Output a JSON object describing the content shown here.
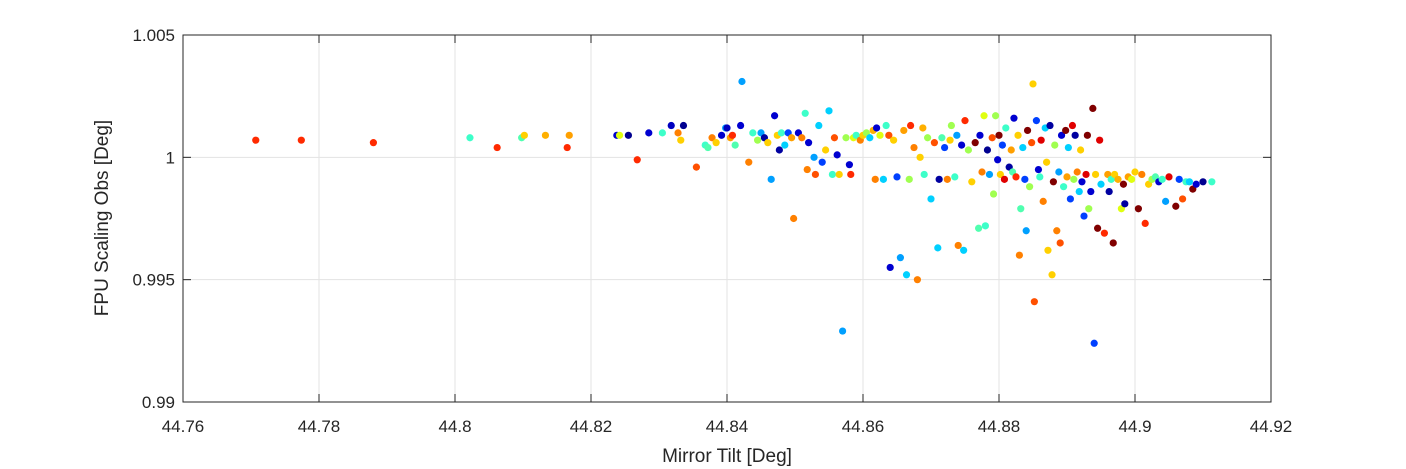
{
  "chart_data": {
    "type": "scatter",
    "title": "",
    "xlabel": "Mirror Tilt [Deg]",
    "ylabel": "FPU Scaling Obs [Deg]",
    "xlim": [
      44.76,
      44.92
    ],
    "ylim": [
      0.99,
      1.005
    ],
    "xticks": [
      44.76,
      44.78,
      44.8,
      44.82,
      44.84,
      44.86,
      44.88,
      44.9,
      44.92
    ],
    "yticks": [
      0.99,
      0.995,
      1,
      1.005
    ],
    "xtick_labels": [
      "44.76",
      "44.78",
      "44.8",
      "44.82",
      "44.84",
      "44.86",
      "44.88",
      "44.9",
      "44.92"
    ],
    "ytick_labels": [
      "0.99",
      "0.995",
      "1",
      "1.005"
    ],
    "grid": true,
    "colormap": "jet",
    "points": [
      {
        "x": 44.7707,
        "y": 1.0007,
        "color": "#ff2a00"
      },
      {
        "x": 44.7774,
        "y": 1.0007,
        "color": "#ff2a00"
      },
      {
        "x": 44.788,
        "y": 1.0006,
        "color": "#ff2a00"
      },
      {
        "x": 44.8022,
        "y": 1.0008,
        "color": "#3dffc9"
      },
      {
        "x": 44.8062,
        "y": 1.0004,
        "color": "#ff2a00"
      },
      {
        "x": 44.8098,
        "y": 1.0008,
        "color": "#50ffb0"
      },
      {
        "x": 44.8102,
        "y": 1.0009,
        "color": "#ffd000"
      },
      {
        "x": 44.8133,
        "y": 1.0009,
        "color": "#ffb000"
      },
      {
        "x": 44.8165,
        "y": 1.0004,
        "color": "#ff2a00"
      },
      {
        "x": 44.8168,
        "y": 1.0009,
        "color": "#ffa000"
      },
      {
        "x": 44.8238,
        "y": 1.0009,
        "color": "#0000cc"
      },
      {
        "x": 44.8242,
        "y": 1.0009,
        "color": "#e0ff10"
      },
      {
        "x": 44.8255,
        "y": 1.0009,
        "color": "#000090"
      },
      {
        "x": 44.8268,
        "y": 0.9999,
        "color": "#ff2a00"
      },
      {
        "x": 44.8285,
        "y": 1.001,
        "color": "#0000d0"
      },
      {
        "x": 44.8305,
        "y": 1.001,
        "color": "#3dffc9"
      },
      {
        "x": 44.8318,
        "y": 1.0013,
        "color": "#0000c0"
      },
      {
        "x": 44.8328,
        "y": 1.001,
        "color": "#ff8000"
      },
      {
        "x": 44.8332,
        "y": 1.0007,
        "color": "#ffd000"
      },
      {
        "x": 44.8336,
        "y": 1.0013,
        "color": "#000090"
      },
      {
        "x": 44.8355,
        "y": 0.9996,
        "color": "#ff5000"
      },
      {
        "x": 44.8368,
        "y": 1.0005,
        "color": "#3dffc9"
      },
      {
        "x": 44.8372,
        "y": 1.0004,
        "color": "#50ffb0"
      },
      {
        "x": 44.8378,
        "y": 1.0008,
        "color": "#ff8000"
      },
      {
        "x": 44.8384,
        "y": 1.0006,
        "color": "#ffd000"
      },
      {
        "x": 44.8392,
        "y": 1.0009,
        "color": "#0000cc"
      },
      {
        "x": 44.8398,
        "y": 1.0012,
        "color": "#00a0ff"
      },
      {
        "x": 44.84,
        "y": 1.0012,
        "color": "#0000c0"
      },
      {
        "x": 44.8405,
        "y": 1.0008,
        "color": "#ffa000"
      },
      {
        "x": 44.8408,
        "y": 1.0009,
        "color": "#ff2a00"
      },
      {
        "x": 44.8412,
        "y": 1.0005,
        "color": "#50ffb0"
      },
      {
        "x": 44.842,
        "y": 1.0013,
        "color": "#0000d0"
      },
      {
        "x": 44.8422,
        "y": 1.0031,
        "color": "#00a0ff"
      },
      {
        "x": 44.8432,
        "y": 0.9998,
        "color": "#ff8000"
      },
      {
        "x": 44.8438,
        "y": 1.001,
        "color": "#3dffc9"
      },
      {
        "x": 44.8445,
        "y": 1.0007,
        "color": "#a0ff50"
      },
      {
        "x": 44.845,
        "y": 1.001,
        "color": "#00a0ff"
      },
      {
        "x": 44.8455,
        "y": 1.0008,
        "color": "#0000a0"
      },
      {
        "x": 44.846,
        "y": 1.0006,
        "color": "#ffd000"
      },
      {
        "x": 44.8465,
        "y": 0.9991,
        "color": "#00a0ff"
      },
      {
        "x": 44.847,
        "y": 1.0017,
        "color": "#0000d0"
      },
      {
        "x": 44.8474,
        "y": 1.0009,
        "color": "#ffd000"
      },
      {
        "x": 44.8477,
        "y": 1.0003,
        "color": "#0000a0"
      },
      {
        "x": 44.848,
        "y": 1.001,
        "color": "#3dffc9"
      },
      {
        "x": 44.8485,
        "y": 1.0005,
        "color": "#00d0ff"
      },
      {
        "x": 44.849,
        "y": 1.001,
        "color": "#0040ff"
      },
      {
        "x": 44.8495,
        "y": 1.0008,
        "color": "#ffa000"
      },
      {
        "x": 44.8498,
        "y": 0.9975,
        "color": "#ff8000"
      },
      {
        "x": 44.8505,
        "y": 1.001,
        "color": "#0000d0"
      },
      {
        "x": 44.851,
        "y": 1.0008,
        "color": "#ff8000"
      },
      {
        "x": 44.8515,
        "y": 1.0018,
        "color": "#3dffc9"
      },
      {
        "x": 44.8518,
        "y": 0.9995,
        "color": "#ff8000"
      },
      {
        "x": 44.852,
        "y": 1.0006,
        "color": "#0000d0"
      },
      {
        "x": 44.8528,
        "y": 1.0,
        "color": "#00a0ff"
      },
      {
        "x": 44.853,
        "y": 0.9993,
        "color": "#ff5000"
      },
      {
        "x": 44.8535,
        "y": 1.0013,
        "color": "#00d0ff"
      },
      {
        "x": 44.854,
        "y": 0.9998,
        "color": "#0040ff"
      },
      {
        "x": 44.8545,
        "y": 1.0003,
        "color": "#ffd000"
      },
      {
        "x": 44.855,
        "y": 1.0019,
        "color": "#00d0ff"
      },
      {
        "x": 44.8555,
        "y": 0.9993,
        "color": "#3dffc9"
      },
      {
        "x": 44.8558,
        "y": 1.0008,
        "color": "#ff5000"
      },
      {
        "x": 44.8562,
        "y": 1.0001,
        "color": "#0000d0"
      },
      {
        "x": 44.8565,
        "y": 0.9993,
        "color": "#ffd000"
      },
      {
        "x": 44.857,
        "y": 0.9929,
        "color": "#00a0ff"
      },
      {
        "x": 44.8575,
        "y": 1.0008,
        "color": "#a0ff50"
      },
      {
        "x": 44.858,
        "y": 0.9997,
        "color": "#0000d0"
      },
      {
        "x": 44.8582,
        "y": 0.9993,
        "color": "#ff2a00"
      },
      {
        "x": 44.8586,
        "y": 1.0008,
        "color": "#e0ff10"
      },
      {
        "x": 44.859,
        "y": 1.0009,
        "color": "#3dffc9"
      },
      {
        "x": 44.8596,
        "y": 1.0007,
        "color": "#ff8000"
      },
      {
        "x": 44.86,
        "y": 1.0009,
        "color": "#ffd000"
      },
      {
        "x": 44.8605,
        "y": 1.001,
        "color": "#a0ff50"
      },
      {
        "x": 44.861,
        "y": 1.0008,
        "color": "#00d0ff"
      },
      {
        "x": 44.8615,
        "y": 1.0011,
        "color": "#ffb000"
      },
      {
        "x": 44.8618,
        "y": 0.9991,
        "color": "#ff8000"
      },
      {
        "x": 44.862,
        "y": 1.0012,
        "color": "#0000d0"
      },
      {
        "x": 44.8625,
        "y": 1.0009,
        "color": "#e0ff10"
      },
      {
        "x": 44.863,
        "y": 0.9991,
        "color": "#00d0ff"
      },
      {
        "x": 44.8634,
        "y": 1.0013,
        "color": "#3dffc9"
      },
      {
        "x": 44.8638,
        "y": 1.0009,
        "color": "#ff5000"
      },
      {
        "x": 44.864,
        "y": 0.9955,
        "color": "#0000d0"
      },
      {
        "x": 44.8645,
        "y": 1.0007,
        "color": "#ffd000"
      },
      {
        "x": 44.865,
        "y": 0.9992,
        "color": "#0040ff"
      },
      {
        "x": 44.8655,
        "y": 0.9959,
        "color": "#00a0ff"
      },
      {
        "x": 44.866,
        "y": 1.0011,
        "color": "#ffa000"
      },
      {
        "x": 44.8664,
        "y": 0.9952,
        "color": "#00d0ff"
      },
      {
        "x": 44.8668,
        "y": 0.9991,
        "color": "#a0ff50"
      },
      {
        "x": 44.867,
        "y": 1.0013,
        "color": "#ff2a00"
      },
      {
        "x": 44.8675,
        "y": 1.0004,
        "color": "#ff8000"
      },
      {
        "x": 44.868,
        "y": 0.995,
        "color": "#ff8000"
      },
      {
        "x": 44.8684,
        "y": 1.0,
        "color": "#ffd000"
      },
      {
        "x": 44.8688,
        "y": 1.0012,
        "color": "#ffb000"
      },
      {
        "x": 44.869,
        "y": 0.9993,
        "color": "#3dffc9"
      },
      {
        "x": 44.8695,
        "y": 1.0008,
        "color": "#a0ff50"
      },
      {
        "x": 44.87,
        "y": 0.9983,
        "color": "#00d0ff"
      },
      {
        "x": 44.8705,
        "y": 1.0006,
        "color": "#ff5000"
      },
      {
        "x": 44.871,
        "y": 0.9963,
        "color": "#00d0ff"
      },
      {
        "x": 44.8712,
        "y": 0.9991,
        "color": "#0000a0"
      },
      {
        "x": 44.8716,
        "y": 1.0008,
        "color": "#50ffb0"
      },
      {
        "x": 44.872,
        "y": 1.0004,
        "color": "#0040ff"
      },
      {
        "x": 44.8724,
        "y": 0.9991,
        "color": "#ff8000"
      },
      {
        "x": 44.8728,
        "y": 1.0007,
        "color": "#ffd000"
      },
      {
        "x": 44.873,
        "y": 1.0013,
        "color": "#a0ff50"
      },
      {
        "x": 44.8735,
        "y": 0.9992,
        "color": "#3dffc9"
      },
      {
        "x": 44.8738,
        "y": 1.0009,
        "color": "#00a0ff"
      },
      {
        "x": 44.874,
        "y": 0.9964,
        "color": "#ff8000"
      },
      {
        "x": 44.8745,
        "y": 1.0005,
        "color": "#0000d0"
      },
      {
        "x": 44.8748,
        "y": 0.9962,
        "color": "#00d0ff"
      },
      {
        "x": 44.875,
        "y": 1.0015,
        "color": "#ff2a00"
      },
      {
        "x": 44.8755,
        "y": 1.0003,
        "color": "#a0ff50"
      },
      {
        "x": 44.876,
        "y": 0.999,
        "color": "#ffd000"
      },
      {
        "x": 44.8765,
        "y": 1.0006,
        "color": "#800000"
      },
      {
        "x": 44.877,
        "y": 0.9971,
        "color": "#50ffb0"
      },
      {
        "x": 44.8772,
        "y": 1.0009,
        "color": "#0000d0"
      },
      {
        "x": 44.8775,
        "y": 0.9994,
        "color": "#ff8000"
      },
      {
        "x": 44.8778,
        "y": 1.0017,
        "color": "#e0ff10"
      },
      {
        "x": 44.878,
        "y": 0.9972,
        "color": "#3dffc9"
      },
      {
        "x": 44.8783,
        "y": 1.0003,
        "color": "#000090"
      },
      {
        "x": 44.8786,
        "y": 0.9993,
        "color": "#00a0ff"
      },
      {
        "x": 44.879,
        "y": 1.0008,
        "color": "#ff5000"
      },
      {
        "x": 44.8792,
        "y": 0.9985,
        "color": "#a0ff50"
      },
      {
        "x": 44.8795,
        "y": 1.0017,
        "color": "#a0ff50"
      },
      {
        "x": 44.8798,
        "y": 0.9999,
        "color": "#0000d0"
      },
      {
        "x": 44.88,
        "y": 1.0009,
        "color": "#800000"
      },
      {
        "x": 44.8802,
        "y": 0.9993,
        "color": "#ffd000"
      },
      {
        "x": 44.8805,
        "y": 1.0005,
        "color": "#0040ff"
      },
      {
        "x": 44.8808,
        "y": 0.9991,
        "color": "#e00000"
      },
      {
        "x": 44.881,
        "y": 1.0012,
        "color": "#3dffc9"
      },
      {
        "x": 44.8815,
        "y": 0.9996,
        "color": "#0000a0"
      },
      {
        "x": 44.8818,
        "y": 1.0003,
        "color": "#ffa000"
      },
      {
        "x": 44.882,
        "y": 0.9994,
        "color": "#50ffb0"
      },
      {
        "x": 44.8822,
        "y": 1.0016,
        "color": "#0000d0"
      },
      {
        "x": 44.8825,
        "y": 0.9992,
        "color": "#ff2a00"
      },
      {
        "x": 44.8828,
        "y": 1.0009,
        "color": "#ffd000"
      },
      {
        "x": 44.883,
        "y": 0.996,
        "color": "#ff8000"
      },
      {
        "x": 44.8832,
        "y": 0.9979,
        "color": "#50ffb0"
      },
      {
        "x": 44.8835,
        "y": 1.0004,
        "color": "#00d0ff"
      },
      {
        "x": 44.8838,
        "y": 0.9991,
        "color": "#0040ff"
      },
      {
        "x": 44.884,
        "y": 0.997,
        "color": "#00a0ff"
      },
      {
        "x": 44.8842,
        "y": 1.0011,
        "color": "#800000"
      },
      {
        "x": 44.8845,
        "y": 0.9988,
        "color": "#a0ff50"
      },
      {
        "x": 44.8848,
        "y": 1.0006,
        "color": "#ff5000"
      },
      {
        "x": 44.885,
        "y": 1.003,
        "color": "#ffd000"
      },
      {
        "x": 44.8852,
        "y": 0.9941,
        "color": "#ff5000"
      },
      {
        "x": 44.8855,
        "y": 1.0015,
        "color": "#0040ff"
      },
      {
        "x": 44.8858,
        "y": 0.9995,
        "color": "#0000d0"
      },
      {
        "x": 44.886,
        "y": 0.9992,
        "color": "#3dffc9"
      },
      {
        "x": 44.8862,
        "y": 1.0007,
        "color": "#e00000"
      },
      {
        "x": 44.8865,
        "y": 0.9982,
        "color": "#ff8000"
      },
      {
        "x": 44.8868,
        "y": 1.0012,
        "color": "#00d0ff"
      },
      {
        "x": 44.887,
        "y": 0.9998,
        "color": "#ffd000"
      },
      {
        "x": 44.8872,
        "y": 0.9962,
        "color": "#ffd000"
      },
      {
        "x": 44.8875,
        "y": 1.0013,
        "color": "#0000a0"
      },
      {
        "x": 44.8878,
        "y": 0.9952,
        "color": "#ffd000"
      },
      {
        "x": 44.888,
        "y": 0.999,
        "color": "#800000"
      },
      {
        "x": 44.8882,
        "y": 1.0005,
        "color": "#a0ff50"
      },
      {
        "x": 44.8885,
        "y": 0.997,
        "color": "#ff8000"
      },
      {
        "x": 44.8888,
        "y": 0.9994,
        "color": "#00a0ff"
      },
      {
        "x": 44.889,
        "y": 0.9965,
        "color": "#ff5000"
      },
      {
        "x": 44.8892,
        "y": 1.0009,
        "color": "#0000d0"
      },
      {
        "x": 44.8895,
        "y": 0.9988,
        "color": "#3dffc9"
      },
      {
        "x": 44.8898,
        "y": 1.0011,
        "color": "#800000"
      },
      {
        "x": 44.89,
        "y": 0.9992,
        "color": "#ffa000"
      },
      {
        "x": 44.8902,
        "y": 1.0004,
        "color": "#00d0ff"
      },
      {
        "x": 44.8905,
        "y": 0.9983,
        "color": "#0040ff"
      },
      {
        "x": 44.8908,
        "y": 1.0013,
        "color": "#e00000"
      },
      {
        "x": 44.891,
        "y": 0.9991,
        "color": "#a0ff50"
      },
      {
        "x": 44.8912,
        "y": 1.0009,
        "color": "#0000a0"
      },
      {
        "x": 44.8915,
        "y": 0.9994,
        "color": "#ff8000"
      },
      {
        "x": 44.8918,
        "y": 0.9986,
        "color": "#00d0ff"
      },
      {
        "x": 44.892,
        "y": 1.0003,
        "color": "#ffd000"
      },
      {
        "x": 44.8922,
        "y": 0.999,
        "color": "#0000d0"
      },
      {
        "x": 44.8925,
        "y": 0.9976,
        "color": "#0040ff"
      },
      {
        "x": 44.8928,
        "y": 0.9993,
        "color": "#e00000"
      },
      {
        "x": 44.893,
        "y": 1.0009,
        "color": "#800000"
      },
      {
        "x": 44.8932,
        "y": 0.9979,
        "color": "#a0ff50"
      },
      {
        "x": 44.8935,
        "y": 0.9986,
        "color": "#0000d0"
      },
      {
        "x": 44.8938,
        "y": 1.002,
        "color": "#800000"
      },
      {
        "x": 44.894,
        "y": 0.9924,
        "color": "#0040ff"
      },
      {
        "x": 44.8942,
        "y": 0.9993,
        "color": "#ffd000"
      },
      {
        "x": 44.8945,
        "y": 0.9971,
        "color": "#800000"
      },
      {
        "x": 44.8948,
        "y": 1.0007,
        "color": "#e00000"
      },
      {
        "x": 44.895,
        "y": 0.9989,
        "color": "#00d0ff"
      },
      {
        "x": 44.8955,
        "y": 0.9969,
        "color": "#ff2a00"
      },
      {
        "x": 44.896,
        "y": 0.9993,
        "color": "#ffa000"
      },
      {
        "x": 44.8962,
        "y": 0.9986,
        "color": "#0000a0"
      },
      {
        "x": 44.8965,
        "y": 0.9991,
        "color": "#3dffc9"
      },
      {
        "x": 44.8968,
        "y": 0.9965,
        "color": "#800000"
      },
      {
        "x": 44.897,
        "y": 0.9993,
        "color": "#ffd000"
      },
      {
        "x": 44.8975,
        "y": 0.9991,
        "color": "#ffb000"
      },
      {
        "x": 44.898,
        "y": 0.9979,
        "color": "#e0ff10"
      },
      {
        "x": 44.8983,
        "y": 0.9989,
        "color": "#800000"
      },
      {
        "x": 44.8985,
        "y": 0.9981,
        "color": "#0000a0"
      },
      {
        "x": 44.899,
        "y": 0.9992,
        "color": "#ffa000"
      },
      {
        "x": 44.8995,
        "y": 0.9991,
        "color": "#e0ff10"
      },
      {
        "x": 44.9,
        "y": 0.9994,
        "color": "#ffd000"
      },
      {
        "x": 44.9005,
        "y": 0.9979,
        "color": "#800000"
      },
      {
        "x": 44.901,
        "y": 0.9993,
        "color": "#ff8000"
      },
      {
        "x": 44.9015,
        "y": 0.9973,
        "color": "#ff2a00"
      },
      {
        "x": 44.902,
        "y": 0.9989,
        "color": "#ffd000"
      },
      {
        "x": 44.9025,
        "y": 0.9991,
        "color": "#a0ff50"
      },
      {
        "x": 44.903,
        "y": 0.9992,
        "color": "#50ffb0"
      },
      {
        "x": 44.9035,
        "y": 0.999,
        "color": "#0000d0"
      },
      {
        "x": 44.904,
        "y": 0.9991,
        "color": "#3dffc9"
      },
      {
        "x": 44.9045,
        "y": 0.9982,
        "color": "#00a0ff"
      },
      {
        "x": 44.905,
        "y": 0.9992,
        "color": "#e00000"
      },
      {
        "x": 44.906,
        "y": 0.998,
        "color": "#800000"
      },
      {
        "x": 44.9065,
        "y": 0.9991,
        "color": "#0040ff"
      },
      {
        "x": 44.907,
        "y": 0.9983,
        "color": "#ff5000"
      },
      {
        "x": 44.9075,
        "y": 0.999,
        "color": "#3dffc9"
      },
      {
        "x": 44.908,
        "y": 0.999,
        "color": "#00d0ff"
      },
      {
        "x": 44.9085,
        "y": 0.9987,
        "color": "#800000"
      },
      {
        "x": 44.909,
        "y": 0.9989,
        "color": "#0000d0"
      },
      {
        "x": 44.91,
        "y": 0.999,
        "color": "#000090"
      },
      {
        "x": 44.9113,
        "y": 0.999,
        "color": "#3dffc9"
      }
    ]
  }
}
